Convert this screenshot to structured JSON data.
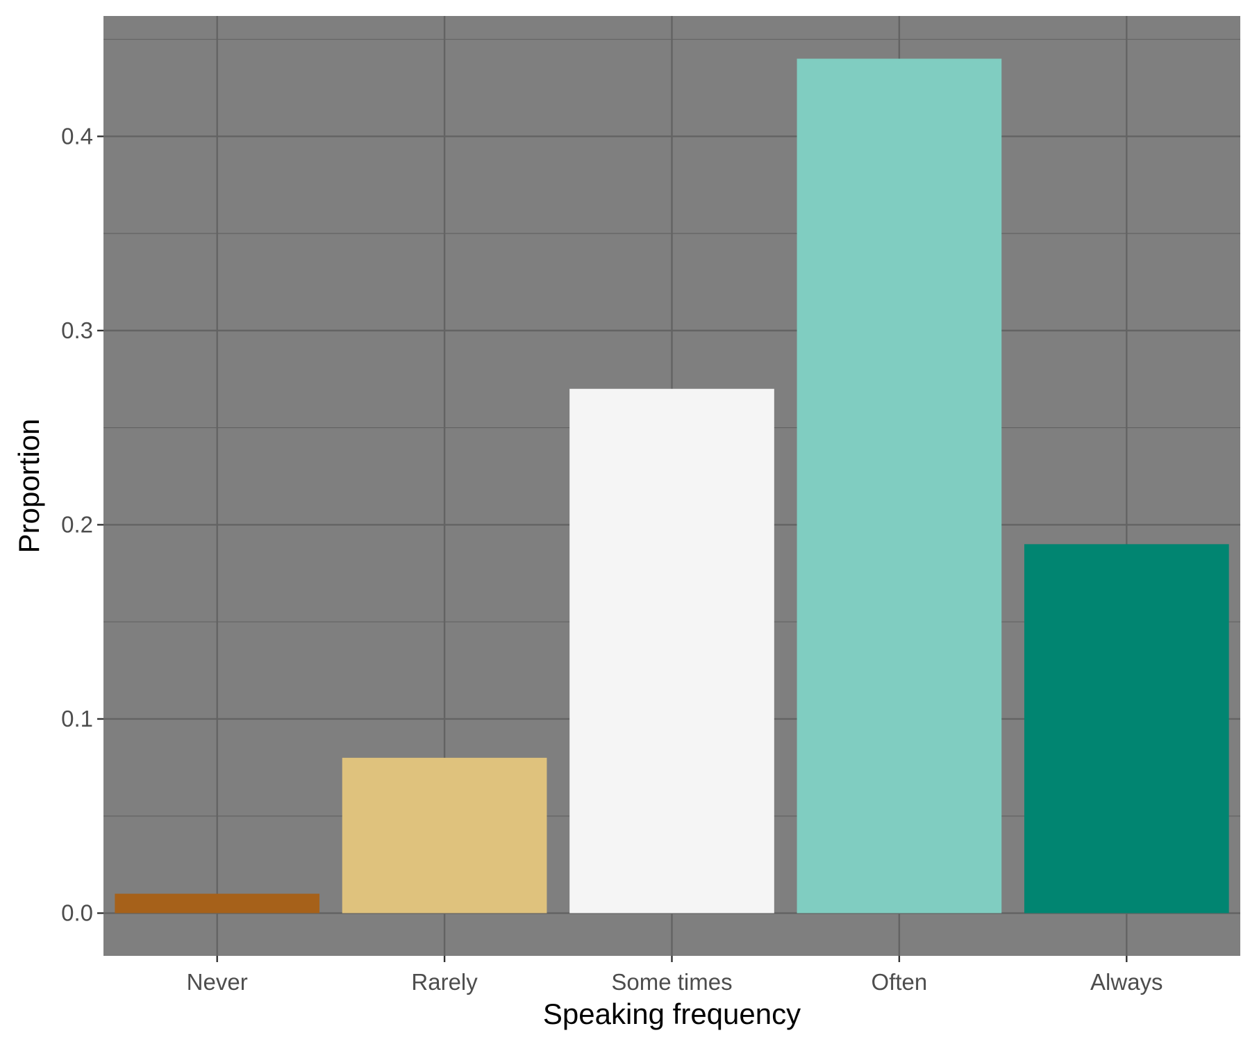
{
  "chart_data": {
    "type": "bar",
    "categories": [
      "Never",
      "Rarely",
      "Some times",
      "Often",
      "Always"
    ],
    "values": [
      0.01,
      0.08,
      0.27,
      0.44,
      0.19
    ],
    "colors": [
      "#A6611A",
      "#DFC27D",
      "#F5F5F5",
      "#80CDC1",
      "#018571"
    ],
    "xlabel": "Speaking frequency",
    "ylabel": "Proportion",
    "ylim": [
      -0.022,
      0.462
    ],
    "yticks": [
      0.0,
      0.1,
      0.2,
      0.3,
      0.4
    ],
    "ytick_labels": [
      "0.0",
      "0.1",
      "0.2",
      "0.3",
      "0.4"
    ],
    "grid": true,
    "legend": "none",
    "panel_background": "#7F7F7F",
    "grid_color": "#636363"
  }
}
